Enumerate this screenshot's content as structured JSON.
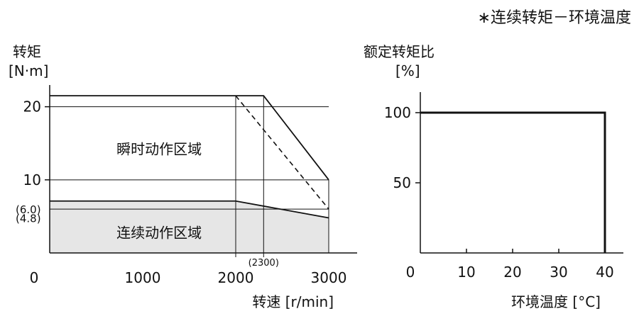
{
  "note": "∗连续转矩－环境温度",
  "chart_data": [
    {
      "type": "area",
      "xlabel": "转速 [r/min]",
      "ylabel_line1": "转矩",
      "ylabel_line2": "[N·m]",
      "xlim": [
        0,
        3000
      ],
      "ylim": [
        0,
        22
      ],
      "x_ticks": [
        {
          "value": 0,
          "label": "0"
        },
        {
          "value": 1000,
          "label": "1000"
        },
        {
          "value": 2000,
          "label": "2000"
        },
        {
          "value": 3000,
          "label": "3000"
        }
      ],
      "y_ticks": [
        {
          "value": 10,
          "label": "10"
        },
        {
          "value": 20,
          "label": "20"
        }
      ],
      "y_annotations": [
        {
          "value": 6.0,
          "label": "(6.0)"
        },
        {
          "value": 4.8,
          "label": "(4.8)"
        }
      ],
      "x_annotations": [
        {
          "value": 2300,
          "label": "(2300)"
        }
      ],
      "regions": [
        {
          "name": "瞬时动作区域",
          "boundary": [
            [
              0,
              21.5
            ],
            [
              2300,
              21.5
            ],
            [
              3000,
              10
            ]
          ],
          "label_at": [
            1100,
            13.4
          ]
        },
        {
          "name": "连续动作区域",
          "boundary": [
            [
              0,
              7.1
            ],
            [
              2000,
              7.1
            ],
            [
              3000,
              4.8
            ]
          ],
          "label_at": [
            1100,
            2.0
          ]
        }
      ],
      "dashed_line": [
        [
          2000,
          21.5
        ],
        [
          3000,
          6.0
        ]
      ],
      "fill_color": "#e6e6e6"
    },
    {
      "type": "line",
      "xlabel": "环境温度 [°C]",
      "ylabel_line1": "额定转矩比",
      "ylabel_line2": "[%]",
      "xlim": [
        0,
        40
      ],
      "ylim": [
        0,
        110
      ],
      "x_ticks": [
        {
          "value": 0,
          "label": "0"
        },
        {
          "value": 10,
          "label": "10"
        },
        {
          "value": 20,
          "label": "20"
        },
        {
          "value": 30,
          "label": "30"
        },
        {
          "value": 40,
          "label": "40"
        }
      ],
      "y_ticks": [
        {
          "value": 50,
          "label": "50"
        },
        {
          "value": 100,
          "label": "100"
        }
      ],
      "series": [
        {
          "x": [
            0,
            40,
            40
          ],
          "y": [
            100,
            100,
            0
          ]
        }
      ]
    }
  ]
}
